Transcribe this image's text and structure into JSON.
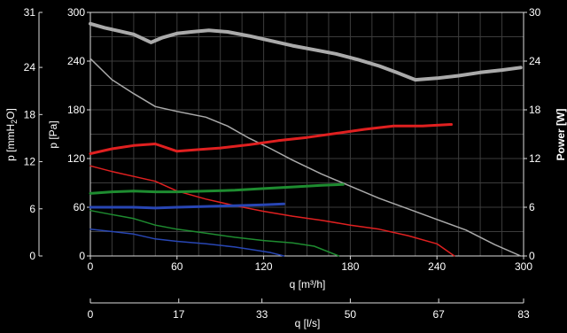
{
  "chart_data": {
    "type": "line",
    "x_axis": {
      "label": "q [m³/h]",
      "range": [
        0,
        300
      ],
      "ticks": [
        0,
        60,
        120,
        180,
        240,
        300
      ]
    },
    "x_axis_secondary": {
      "label": "q [l/s]",
      "range": [
        0,
        83.33
      ],
      "ticks": [
        0,
        17,
        33,
        50,
        67,
        83
      ]
    },
    "y_axis_left_outer": {
      "label_main": "p [mmH",
      "label_sub": "2",
      "label_end": "O]",
      "range": [
        0,
        31
      ],
      "ticks": [
        0,
        6,
        12,
        18,
        24,
        31
      ]
    },
    "y_axis_left": {
      "label": "p [Pa]",
      "range": [
        0,
        300
      ],
      "ticks": [
        0,
        60,
        120,
        180,
        240,
        300
      ]
    },
    "y_axis_right": {
      "label": "Power [W]",
      "range": [
        0,
        30
      ],
      "ticks": [
        0,
        6,
        12,
        18,
        24,
        30
      ]
    },
    "grid": true,
    "series": [
      {
        "axis": "pressure",
        "color": "#aaaaaa",
        "width": 1.5,
        "points": [
          [
            0,
            243
          ],
          [
            15,
            217
          ],
          [
            30,
            200
          ],
          [
            45,
            184
          ],
          [
            60,
            178
          ],
          [
            80,
            171
          ],
          [
            95,
            160
          ],
          [
            110,
            145
          ],
          [
            125,
            132
          ],
          [
            140,
            118
          ],
          [
            160,
            101
          ],
          [
            180,
            86
          ],
          [
            200,
            71
          ],
          [
            220,
            58
          ],
          [
            240,
            45
          ],
          [
            260,
            32
          ],
          [
            280,
            14
          ],
          [
            298,
            0
          ]
        ]
      },
      {
        "axis": "pressure",
        "color": "#e02020",
        "width": 1.5,
        "points": [
          [
            0,
            111
          ],
          [
            15,
            104
          ],
          [
            30,
            98
          ],
          [
            45,
            92
          ],
          [
            60,
            80
          ],
          [
            80,
            70
          ],
          [
            100,
            62
          ],
          [
            120,
            55
          ],
          [
            140,
            49
          ],
          [
            160,
            44
          ],
          [
            180,
            38
          ],
          [
            200,
            33
          ],
          [
            220,
            25
          ],
          [
            240,
            15
          ],
          [
            252,
            0
          ]
        ]
      },
      {
        "axis": "pressure",
        "color": "#1e8c30",
        "width": 1.5,
        "points": [
          [
            0,
            56
          ],
          [
            15,
            51
          ],
          [
            30,
            46
          ],
          [
            45,
            38
          ],
          [
            60,
            33
          ],
          [
            80,
            28
          ],
          [
            100,
            23
          ],
          [
            120,
            19
          ],
          [
            140,
            16
          ],
          [
            155,
            12
          ],
          [
            172,
            0
          ]
        ]
      },
      {
        "axis": "pressure",
        "color": "#2846b4",
        "width": 1.5,
        "points": [
          [
            0,
            33
          ],
          [
            15,
            30
          ],
          [
            30,
            27
          ],
          [
            45,
            21
          ],
          [
            60,
            18
          ],
          [
            80,
            15
          ],
          [
            100,
            11
          ],
          [
            115,
            7
          ],
          [
            125,
            4
          ],
          [
            134,
            0
          ]
        ]
      },
      {
        "axis": "power",
        "color": "#aaaaaa",
        "width": 4,
        "points": [
          [
            0,
            28.6
          ],
          [
            10,
            28.1
          ],
          [
            20,
            27.7
          ],
          [
            30,
            27.3
          ],
          [
            42,
            26.3
          ],
          [
            50,
            26.9
          ],
          [
            60,
            27.4
          ],
          [
            70,
            27.6
          ],
          [
            82,
            27.8
          ],
          [
            95,
            27.6
          ],
          [
            110,
            27.1
          ],
          [
            125,
            26.5
          ],
          [
            140,
            25.9
          ],
          [
            155,
            25.4
          ],
          [
            170,
            24.9
          ],
          [
            185,
            24.2
          ],
          [
            200,
            23.4
          ],
          [
            212,
            22.6
          ],
          [
            225,
            21.7
          ],
          [
            240,
            21.9
          ],
          [
            255,
            22.2
          ],
          [
            270,
            22.6
          ],
          [
            285,
            22.9
          ],
          [
            298,
            23.2
          ]
        ]
      },
      {
        "axis": "power",
        "color": "#e02020",
        "width": 3,
        "points": [
          [
            0,
            12.6
          ],
          [
            15,
            13.2
          ],
          [
            30,
            13.6
          ],
          [
            45,
            13.8
          ],
          [
            60,
            12.9
          ],
          [
            75,
            13.1
          ],
          [
            90,
            13.3
          ],
          [
            110,
            13.7
          ],
          [
            130,
            14.2
          ],
          [
            150,
            14.6
          ],
          [
            170,
            15.1
          ],
          [
            190,
            15.6
          ],
          [
            210,
            16.0
          ],
          [
            230,
            16.0
          ],
          [
            250,
            16.2
          ]
        ]
      },
      {
        "axis": "power",
        "color": "#1e8c30",
        "width": 3,
        "points": [
          [
            0,
            7.7
          ],
          [
            15,
            7.9
          ],
          [
            30,
            8.0
          ],
          [
            45,
            7.9
          ],
          [
            60,
            7.9
          ],
          [
            80,
            8.0
          ],
          [
            100,
            8.1
          ],
          [
            120,
            8.3
          ],
          [
            140,
            8.5
          ],
          [
            160,
            8.7
          ],
          [
            175,
            8.8
          ]
        ]
      },
      {
        "axis": "power",
        "color": "#2846b4",
        "width": 3,
        "points": [
          [
            0,
            6.0
          ],
          [
            15,
            6.0
          ],
          [
            30,
            6.0
          ],
          [
            45,
            5.9
          ],
          [
            60,
            6.0
          ],
          [
            80,
            6.1
          ],
          [
            100,
            6.2
          ],
          [
            120,
            6.3
          ],
          [
            134,
            6.4
          ]
        ]
      }
    ]
  }
}
